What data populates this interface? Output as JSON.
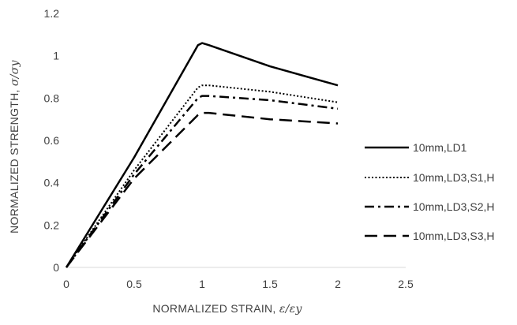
{
  "chart_data": {
    "type": "line",
    "xlabel": "NORMALIZED STRAIN, ",
    "xlabel_symbol": "ε/εy",
    "ylabel": "NORMALIZED STRENGTH, ",
    "ylabel_symbol": "σ/σy",
    "xlim": [
      0,
      2.5
    ],
    "ylim": [
      0,
      1.2
    ],
    "xticks": [
      "0",
      "0.5",
      "1",
      "1.5",
      "2",
      "2.5"
    ],
    "yticks": [
      "0",
      "0.2",
      "0.4",
      "0.6",
      "0.8",
      "1",
      "1.2"
    ],
    "grid": false,
    "legend_position": "right",
    "series": [
      {
        "name": "10mm,LD1",
        "style": "solid",
        "color": "#000000",
        "points": [
          [
            0,
            0
          ],
          [
            0.5,
            0.52
          ],
          [
            0.97,
            1.05
          ],
          [
            1.0,
            1.06
          ],
          [
            1.05,
            1.05
          ],
          [
            1.5,
            0.95
          ],
          [
            2.0,
            0.86
          ]
        ]
      },
      {
        "name": "10mm,LD3,S1,H",
        "style": "dotted",
        "color": "#000000",
        "points": [
          [
            0,
            0
          ],
          [
            0.5,
            0.46
          ],
          [
            0.97,
            0.85
          ],
          [
            1.0,
            0.86
          ],
          [
            1.05,
            0.86
          ],
          [
            1.5,
            0.83
          ],
          [
            2.0,
            0.78
          ]
        ]
      },
      {
        "name": "10mm,LD3,S2,H",
        "style": "dashdot",
        "color": "#000000",
        "points": [
          [
            0,
            0
          ],
          [
            0.5,
            0.44
          ],
          [
            0.97,
            0.8
          ],
          [
            1.0,
            0.81
          ],
          [
            1.05,
            0.81
          ],
          [
            1.5,
            0.79
          ],
          [
            2.0,
            0.75
          ]
        ]
      },
      {
        "name": "10mm,LD3,S3,H",
        "style": "longdash",
        "color": "#000000",
        "points": [
          [
            0,
            0
          ],
          [
            0.5,
            0.42
          ],
          [
            0.97,
            0.72
          ],
          [
            1.0,
            0.73
          ],
          [
            1.05,
            0.73
          ],
          [
            1.5,
            0.7
          ],
          [
            2.0,
            0.68
          ]
        ]
      }
    ]
  }
}
